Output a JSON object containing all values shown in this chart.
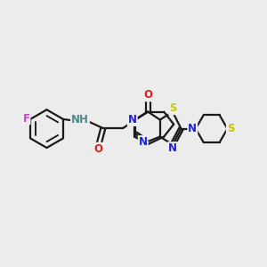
{
  "bg_color": "#ececec",
  "bond_color": "#1a1a1a",
  "bond_width": 1.6,
  "atom_colors": {
    "C": "#1a1a1a",
    "N": "#2020dd",
    "O": "#dd2020",
    "S": "#c8c800",
    "F": "#cc44cc",
    "NH": "#4a8a8a"
  },
  "font_size": 8.5
}
